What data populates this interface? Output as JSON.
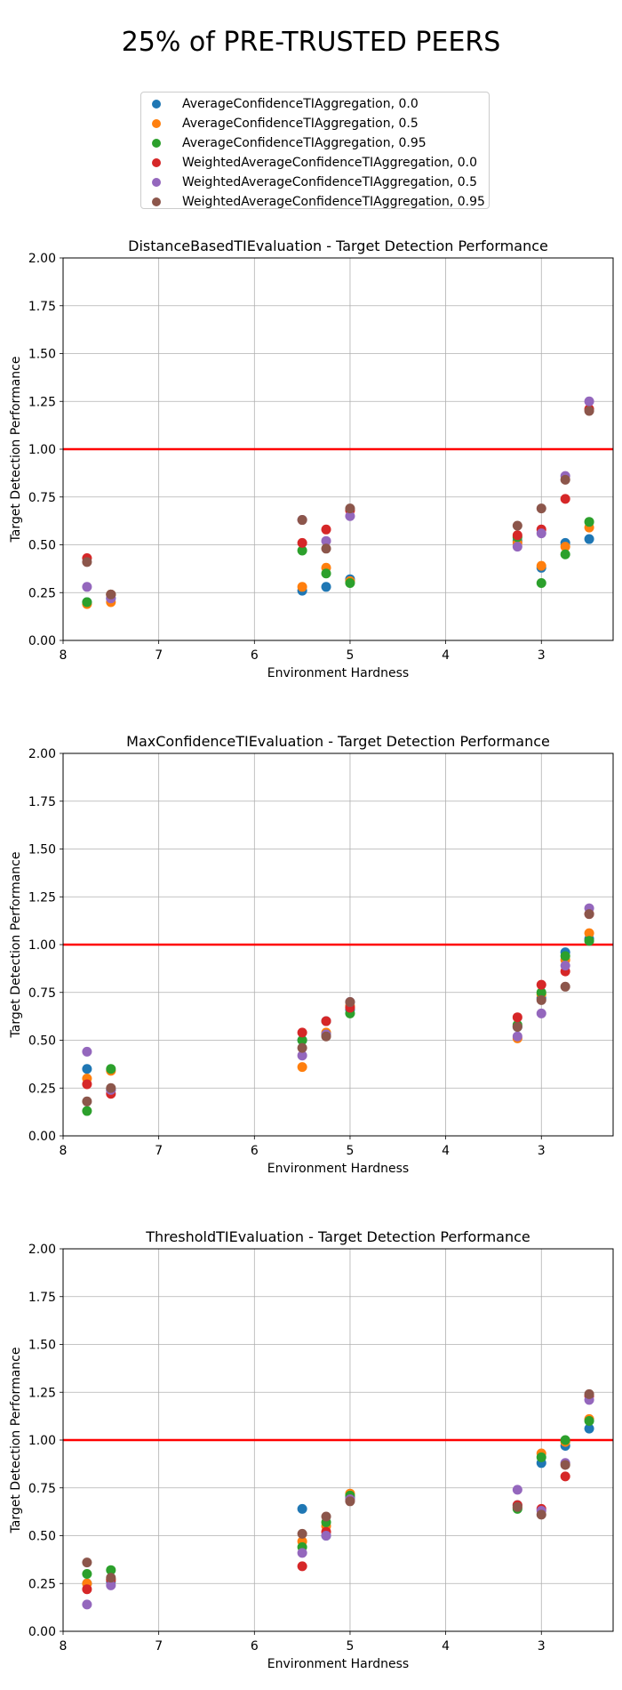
{
  "figure": {
    "title": "25% of PRE-TRUSTED PEERS"
  },
  "legend": {
    "items": [
      {
        "label": "AverageConfidenceTIAggregation, 0.0",
        "color": "#1f77b4"
      },
      {
        "label": "AverageConfidenceTIAggregation, 0.5",
        "color": "#ff7f0e"
      },
      {
        "label": "AverageConfidenceTIAggregation, 0.95",
        "color": "#2ca02c"
      },
      {
        "label": "WeightedAverageConfidenceTIAggregation, 0.0",
        "color": "#d62728"
      },
      {
        "label": "WeightedAverageConfidenceTIAggregation, 0.5",
        "color": "#9467bd"
      },
      {
        "label": "WeightedAverageConfidenceTIAggregation, 0.95",
        "color": "#8c564b"
      }
    ]
  },
  "chart_data": [
    {
      "type": "scatter",
      "title": "DistanceBasedTIEvaluation - Target Detection Performance",
      "xlabel": "Environment Hardness",
      "ylabel": "Target Detection Performance",
      "xlim": [
        8,
        2.25
      ],
      "ylim": [
        0,
        2
      ],
      "xticks": [
        "8",
        "7",
        "6",
        "5",
        "4",
        "3"
      ],
      "yticks": [
        "0.00",
        "0.25",
        "0.50",
        "0.75",
        "1.00",
        "1.25",
        "1.50",
        "1.75",
        "2.00"
      ],
      "grid": true,
      "reference_line": {
        "y": 1.0,
        "color": "#ff0000"
      },
      "x": [
        7.75,
        7.5,
        5.5,
        5.25,
        5.0,
        3.25,
        3.0,
        2.75,
        2.5
      ],
      "series": [
        {
          "name": "AverageConfidenceTIAggregation, 0.0",
          "values": [
            0.2,
            0.22,
            0.26,
            0.28,
            0.32,
            0.52,
            0.38,
            0.51,
            0.53
          ]
        },
        {
          "name": "AverageConfidenceTIAggregation, 0.5",
          "values": [
            0.19,
            0.2,
            0.28,
            0.38,
            0.31,
            0.51,
            0.39,
            0.49,
            0.59
          ]
        },
        {
          "name": "AverageConfidenceTIAggregation, 0.95",
          "values": [
            0.2,
            0.24,
            0.47,
            0.35,
            0.3,
            0.54,
            0.3,
            0.45,
            0.62
          ]
        },
        {
          "name": "WeightedAverageConfidenceTIAggregation, 0.0",
          "values": [
            0.43,
            0.24,
            0.51,
            0.58,
            0.68,
            0.55,
            0.58,
            0.74,
            1.21
          ]
        },
        {
          "name": "WeightedAverageConfidenceTIAggregation, 0.5",
          "values": [
            0.28,
            0.22,
            0.63,
            0.52,
            0.65,
            0.49,
            0.56,
            0.86,
            1.25
          ]
        },
        {
          "name": "WeightedAverageConfidenceTIAggregation, 0.95",
          "values": [
            0.41,
            0.24,
            0.63,
            0.48,
            0.69,
            0.6,
            0.69,
            0.84,
            1.2
          ]
        }
      ]
    },
    {
      "type": "scatter",
      "title": "MaxConfidenceTIEvaluation - Target Detection Performance",
      "xlabel": "Environment Hardness",
      "ylabel": "Target Detection Performance",
      "xlim": [
        8,
        2.25
      ],
      "ylim": [
        0,
        2
      ],
      "xticks": [
        "8",
        "7",
        "6",
        "5",
        "4",
        "3"
      ],
      "yticks": [
        "0.00",
        "0.25",
        "0.50",
        "0.75",
        "1.00",
        "1.25",
        "1.50",
        "1.75",
        "2.00"
      ],
      "grid": true,
      "reference_line": {
        "y": 1.0,
        "color": "#ff0000"
      },
      "x": [
        7.75,
        7.5,
        5.5,
        5.25,
        5.0,
        3.25,
        3.0,
        2.75,
        2.5
      ],
      "series": [
        {
          "name": "AverageConfidenceTIAggregation, 0.0",
          "values": [
            0.35,
            0.24,
            0.5,
            0.6,
            0.66,
            0.57,
            0.72,
            0.96,
            1.03
          ]
        },
        {
          "name": "AverageConfidenceTIAggregation, 0.5",
          "values": [
            0.3,
            0.34,
            0.36,
            0.54,
            0.68,
            0.51,
            0.74,
            0.92,
            1.06
          ]
        },
        {
          "name": "AverageConfidenceTIAggregation, 0.95",
          "values": [
            0.13,
            0.35,
            0.5,
            0.53,
            0.64,
            0.58,
            0.75,
            0.94,
            1.02
          ]
        },
        {
          "name": "WeightedAverageConfidenceTIAggregation, 0.0",
          "values": [
            0.27,
            0.22,
            0.54,
            0.6,
            0.67,
            0.62,
            0.79,
            0.86,
            1.16
          ]
        },
        {
          "name": "WeightedAverageConfidenceTIAggregation, 0.5",
          "values": [
            0.44,
            0.24,
            0.42,
            0.53,
            0.7,
            0.52,
            0.64,
            0.89,
            1.19
          ]
        },
        {
          "name": "WeightedAverageConfidenceTIAggregation, 0.95",
          "values": [
            0.18,
            0.25,
            0.46,
            0.52,
            0.7,
            0.57,
            0.71,
            0.78,
            1.16
          ]
        }
      ]
    },
    {
      "type": "scatter",
      "title": "ThresholdTIEvaluation - Target Detection Performance",
      "xlabel": "Environment Hardness",
      "ylabel": "Target Detection Performance",
      "xlim": [
        8,
        2.25
      ],
      "ylim": [
        0,
        2
      ],
      "xticks": [
        "8",
        "7",
        "6",
        "5",
        "4",
        "3"
      ],
      "yticks": [
        "0.00",
        "0.25",
        "0.50",
        "0.75",
        "1.00",
        "1.25",
        "1.50",
        "1.75",
        "2.00"
      ],
      "grid": true,
      "reference_line": {
        "y": 1.0,
        "color": "#ff0000"
      },
      "x": [
        7.75,
        7.5,
        5.5,
        5.25,
        5.0,
        3.25,
        3.0,
        2.75,
        2.5
      ],
      "series": [
        {
          "name": "AverageConfidenceTIAggregation, 0.0",
          "values": [
            0.25,
            0.26,
            0.64,
            0.5,
            0.7,
            0.66,
            0.88,
            0.97,
            1.06
          ]
        },
        {
          "name": "AverageConfidenceTIAggregation, 0.5",
          "values": [
            0.25,
            0.27,
            0.47,
            0.55,
            0.72,
            0.65,
            0.93,
            0.99,
            1.11
          ]
        },
        {
          "name": "AverageConfidenceTIAggregation, 0.95",
          "values": [
            0.3,
            0.32,
            0.44,
            0.57,
            0.71,
            0.64,
            0.91,
            1.0,
            1.1
          ]
        },
        {
          "name": "WeightedAverageConfidenceTIAggregation, 0.0",
          "values": [
            0.22,
            0.27,
            0.34,
            0.52,
            0.69,
            0.66,
            0.64,
            0.81,
            1.23
          ]
        },
        {
          "name": "WeightedAverageConfidenceTIAggregation, 0.5",
          "values": [
            0.14,
            0.24,
            0.41,
            0.5,
            0.69,
            0.74,
            0.63,
            0.88,
            1.21
          ]
        },
        {
          "name": "WeightedAverageConfidenceTIAggregation, 0.95",
          "values": [
            0.36,
            0.28,
            0.51,
            0.6,
            0.68,
            0.65,
            0.61,
            0.87,
            1.24
          ]
        }
      ]
    }
  ]
}
